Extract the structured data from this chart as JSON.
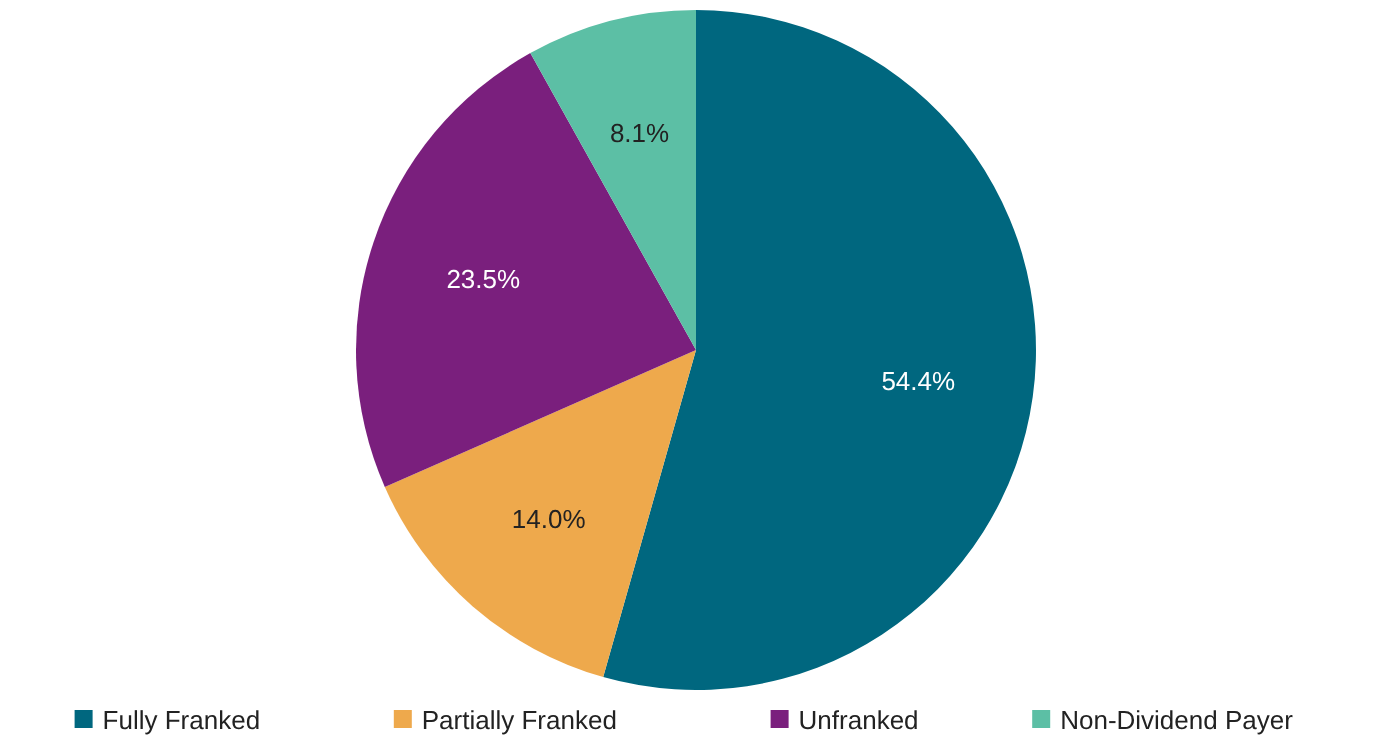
{
  "chart_data": {
    "type": "pie",
    "categories": [
      "Fully Franked",
      "Partially Franked",
      "Unfranked",
      "Non-Dividend Payer"
    ],
    "values": [
      54.4,
      14.0,
      23.5,
      8.1
    ],
    "value_labels": [
      "54.4%",
      "14.0%",
      "23.5%",
      "8.1%"
    ],
    "colors": [
      "#00677f",
      "#eea94c",
      "#7a1f7d",
      "#5cbfa5"
    ],
    "legend": "bottom"
  }
}
